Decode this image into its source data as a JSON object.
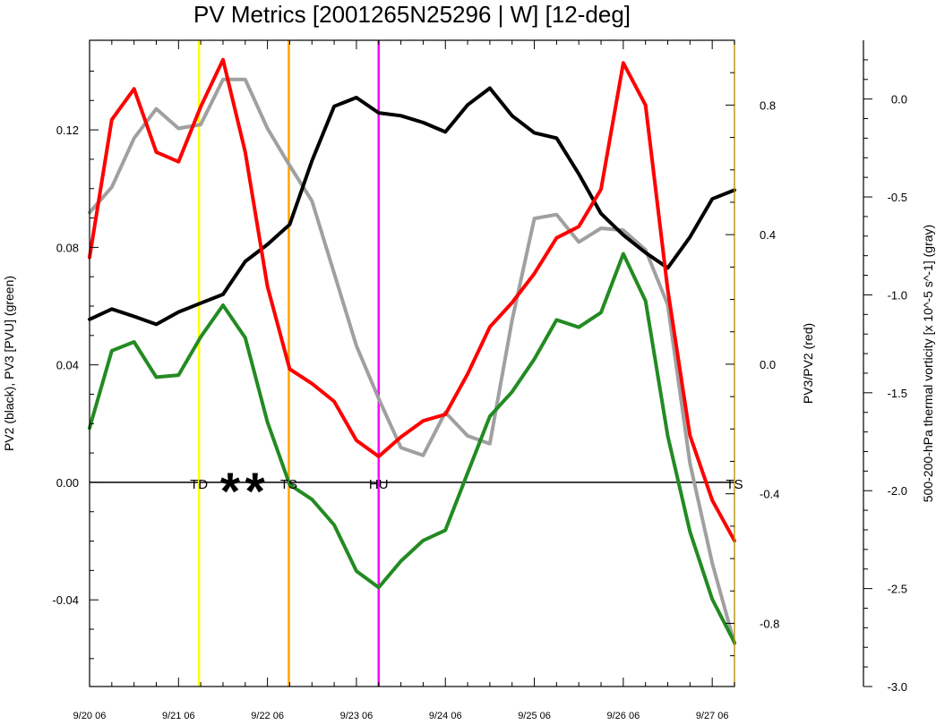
{
  "title": "PV Metrics [2001265N25296 | W] [12-deg]",
  "chart_data": {
    "type": "line",
    "title": "PV Metrics [2001265N25296 | W] [12-deg]",
    "ylabel_left": "PV2 (black), PV3 [PVU] (green)",
    "ylabel_right": "PV3/PV2 (red)",
    "ylabel_far_right": "500-200-hPa thermal vorticity [x 10^-5 s^-1] (gray)",
    "x_tick_labels": [
      "9/20 06",
      "9/21 06",
      "9/22 06",
      "9/23 06",
      "9/24 06",
      "9/25 06",
      "9/26 06",
      "9/27 06"
    ],
    "x_range": [
      0,
      7.25
    ],
    "left_axis": {
      "range": [
        -0.0695,
        0.1505
      ],
      "ticks": [
        "-0.04",
        "0.00",
        "0.04",
        "0.08",
        "0.12"
      ],
      "tick_values": [
        -0.04,
        0.0,
        0.04,
        0.08,
        0.12
      ]
    },
    "right_axis": {
      "range": [
        -0.995,
        1.0
      ],
      "ticks": [
        "-0.8",
        "-0.4",
        "0.0",
        "0.4",
        "0.8"
      ],
      "tick_values": [
        -0.8,
        -0.4,
        0.0,
        0.4,
        0.8
      ]
    },
    "far_right_axis": {
      "range": [
        -3.0,
        0.3
      ],
      "ticks": [
        "-3.0",
        "-2.5",
        "-2.0",
        "-1.5",
        "-1.0",
        "-0.5",
        "0.0"
      ],
      "tick_values": [
        -3.0,
        -2.5,
        -2.0,
        -1.5,
        -1.0,
        -0.5,
        0.0
      ]
    },
    "x": [
      0,
      0.25,
      0.5,
      0.75,
      1.0,
      1.25,
      1.5,
      1.75,
      2.0,
      2.25,
      2.5,
      2.75,
      3.0,
      3.25,
      3.5,
      3.75,
      4.0,
      4.25,
      4.5,
      4.75,
      5.0,
      5.25,
      5.5,
      5.75,
      6.0,
      6.25,
      6.5,
      6.75,
      7.0,
      7.25
    ],
    "series": [
      {
        "axis": "left",
        "color": "#000000",
        "values": [
          0.0555,
          0.059,
          0.0565,
          0.0538,
          0.058,
          0.061,
          0.064,
          0.0752,
          0.081,
          0.0878,
          0.1095,
          0.128,
          0.131,
          0.1258,
          0.1248,
          0.1225,
          0.1193,
          0.1285,
          0.1342,
          0.1248,
          0.119,
          0.1172,
          0.105,
          0.0915,
          0.0842,
          0.0782,
          0.073,
          0.0835,
          0.0965,
          0.0995
        ]
      },
      {
        "axis": "left",
        "color": "#228b22",
        "values": [
          0.0185,
          0.0448,
          0.0478,
          0.0358,
          0.0365,
          0.0495,
          0.0603,
          0.0492,
          0.0205,
          -0.0008,
          -0.0058,
          -0.0145,
          -0.0302,
          -0.0358,
          -0.0268,
          -0.0198,
          -0.0163,
          0.0032,
          0.0225,
          0.0308,
          0.042,
          0.0553,
          0.0528,
          0.0578,
          0.0778,
          0.0618,
          0.0158,
          -0.0168,
          -0.0398,
          -0.0545
        ]
      },
      {
        "axis": "right",
        "color": "#ff0000",
        "values": [
          0.33,
          0.755,
          0.85,
          0.655,
          0.625,
          0.795,
          0.94,
          0.655,
          0.24,
          -0.015,
          -0.06,
          -0.115,
          -0.235,
          -0.285,
          -0.225,
          -0.175,
          -0.155,
          -0.03,
          0.115,
          0.19,
          0.28,
          0.39,
          0.425,
          0.54,
          0.93,
          0.8,
          0.23,
          -0.22,
          -0.42,
          -0.545
        ]
      },
      {
        "axis": "far_right",
        "color": "#a0a0a0",
        "values": [
          -0.58,
          -0.45,
          -0.2,
          -0.05,
          -0.15,
          -0.13,
          0.1,
          0.1,
          -0.15,
          -0.34,
          -0.52,
          -0.89,
          -1.26,
          -1.53,
          -1.78,
          -1.82,
          -1.6,
          -1.72,
          -1.76,
          -1.13,
          -0.61,
          -0.59,
          -0.73,
          -0.66,
          -0.67,
          -0.77,
          -1.05,
          -1.86,
          -2.37,
          -2.78
        ]
      }
    ],
    "vertical_markers": [
      {
        "x": 1.23,
        "color": "#ffff00"
      },
      {
        "x": 2.24,
        "color": "#ffa500"
      },
      {
        "x": 3.25,
        "color": "#ff00ff"
      }
    ],
    "stage_labels": [
      {
        "text": "TD",
        "x": 1.23
      },
      {
        "text": "TS",
        "x": 2.24
      },
      {
        "text": "HU",
        "x": 3.25
      },
      {
        "text": "TS",
        "x": 7.25
      }
    ],
    "asterisk_labels": [
      {
        "text": "*",
        "x": 1.58
      },
      {
        "text": "*",
        "x": 1.86
      }
    ],
    "grid": false,
    "legend": "none"
  }
}
